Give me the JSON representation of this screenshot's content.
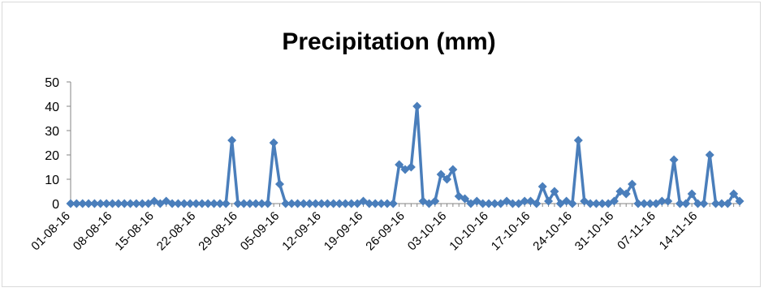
{
  "chart_data": {
    "type": "line",
    "title": "Precipitation (mm)",
    "xlabel": "",
    "ylabel": "",
    "ylim": [
      0,
      50
    ],
    "yticks": [
      "0",
      "10",
      "20",
      "30",
      "40",
      "50"
    ],
    "grid": false,
    "legend": "none",
    "color": "#4a7ebb",
    "x_tick_labels": [
      "01-08-16",
      "08-08-16",
      "15-08-16",
      "22-08-16",
      "29-08-16",
      "05-09-16",
      "12-09-16",
      "19-09-16",
      "26-09-16",
      "03-10-16",
      "10-10-16",
      "17-10-16",
      "24-10-16",
      "31-10-16",
      "07-11-16",
      "14-11-16"
    ],
    "x_start": "01-08-16",
    "x_end": "16-11-16",
    "series": [
      {
        "values": [
          0,
          0,
          0,
          0,
          0,
          0,
          0,
          0,
          0,
          0,
          0,
          0,
          0,
          0,
          1,
          0,
          1,
          0,
          0,
          0,
          0,
          0,
          0,
          0,
          0,
          0,
          0,
          26,
          0,
          0,
          0,
          0,
          0,
          0,
          25,
          8,
          0,
          0,
          0,
          0,
          0,
          0,
          0,
          0,
          0,
          0,
          0,
          0,
          0,
          1,
          0,
          0,
          0,
          0,
          0,
          16,
          14,
          15,
          40,
          1,
          0,
          1,
          12,
          10,
          14,
          3,
          2,
          0,
          1,
          0,
          0,
          0,
          0,
          1,
          0,
          0,
          1,
          1,
          0,
          7,
          1,
          5,
          0,
          1,
          0,
          26,
          1,
          0,
          0,
          0,
          0,
          1,
          5,
          4,
          8,
          0,
          0,
          0,
          0,
          1,
          1,
          18,
          0,
          0,
          4,
          0,
          0,
          20,
          0,
          0,
          0,
          4,
          1
        ]
      }
    ]
  }
}
